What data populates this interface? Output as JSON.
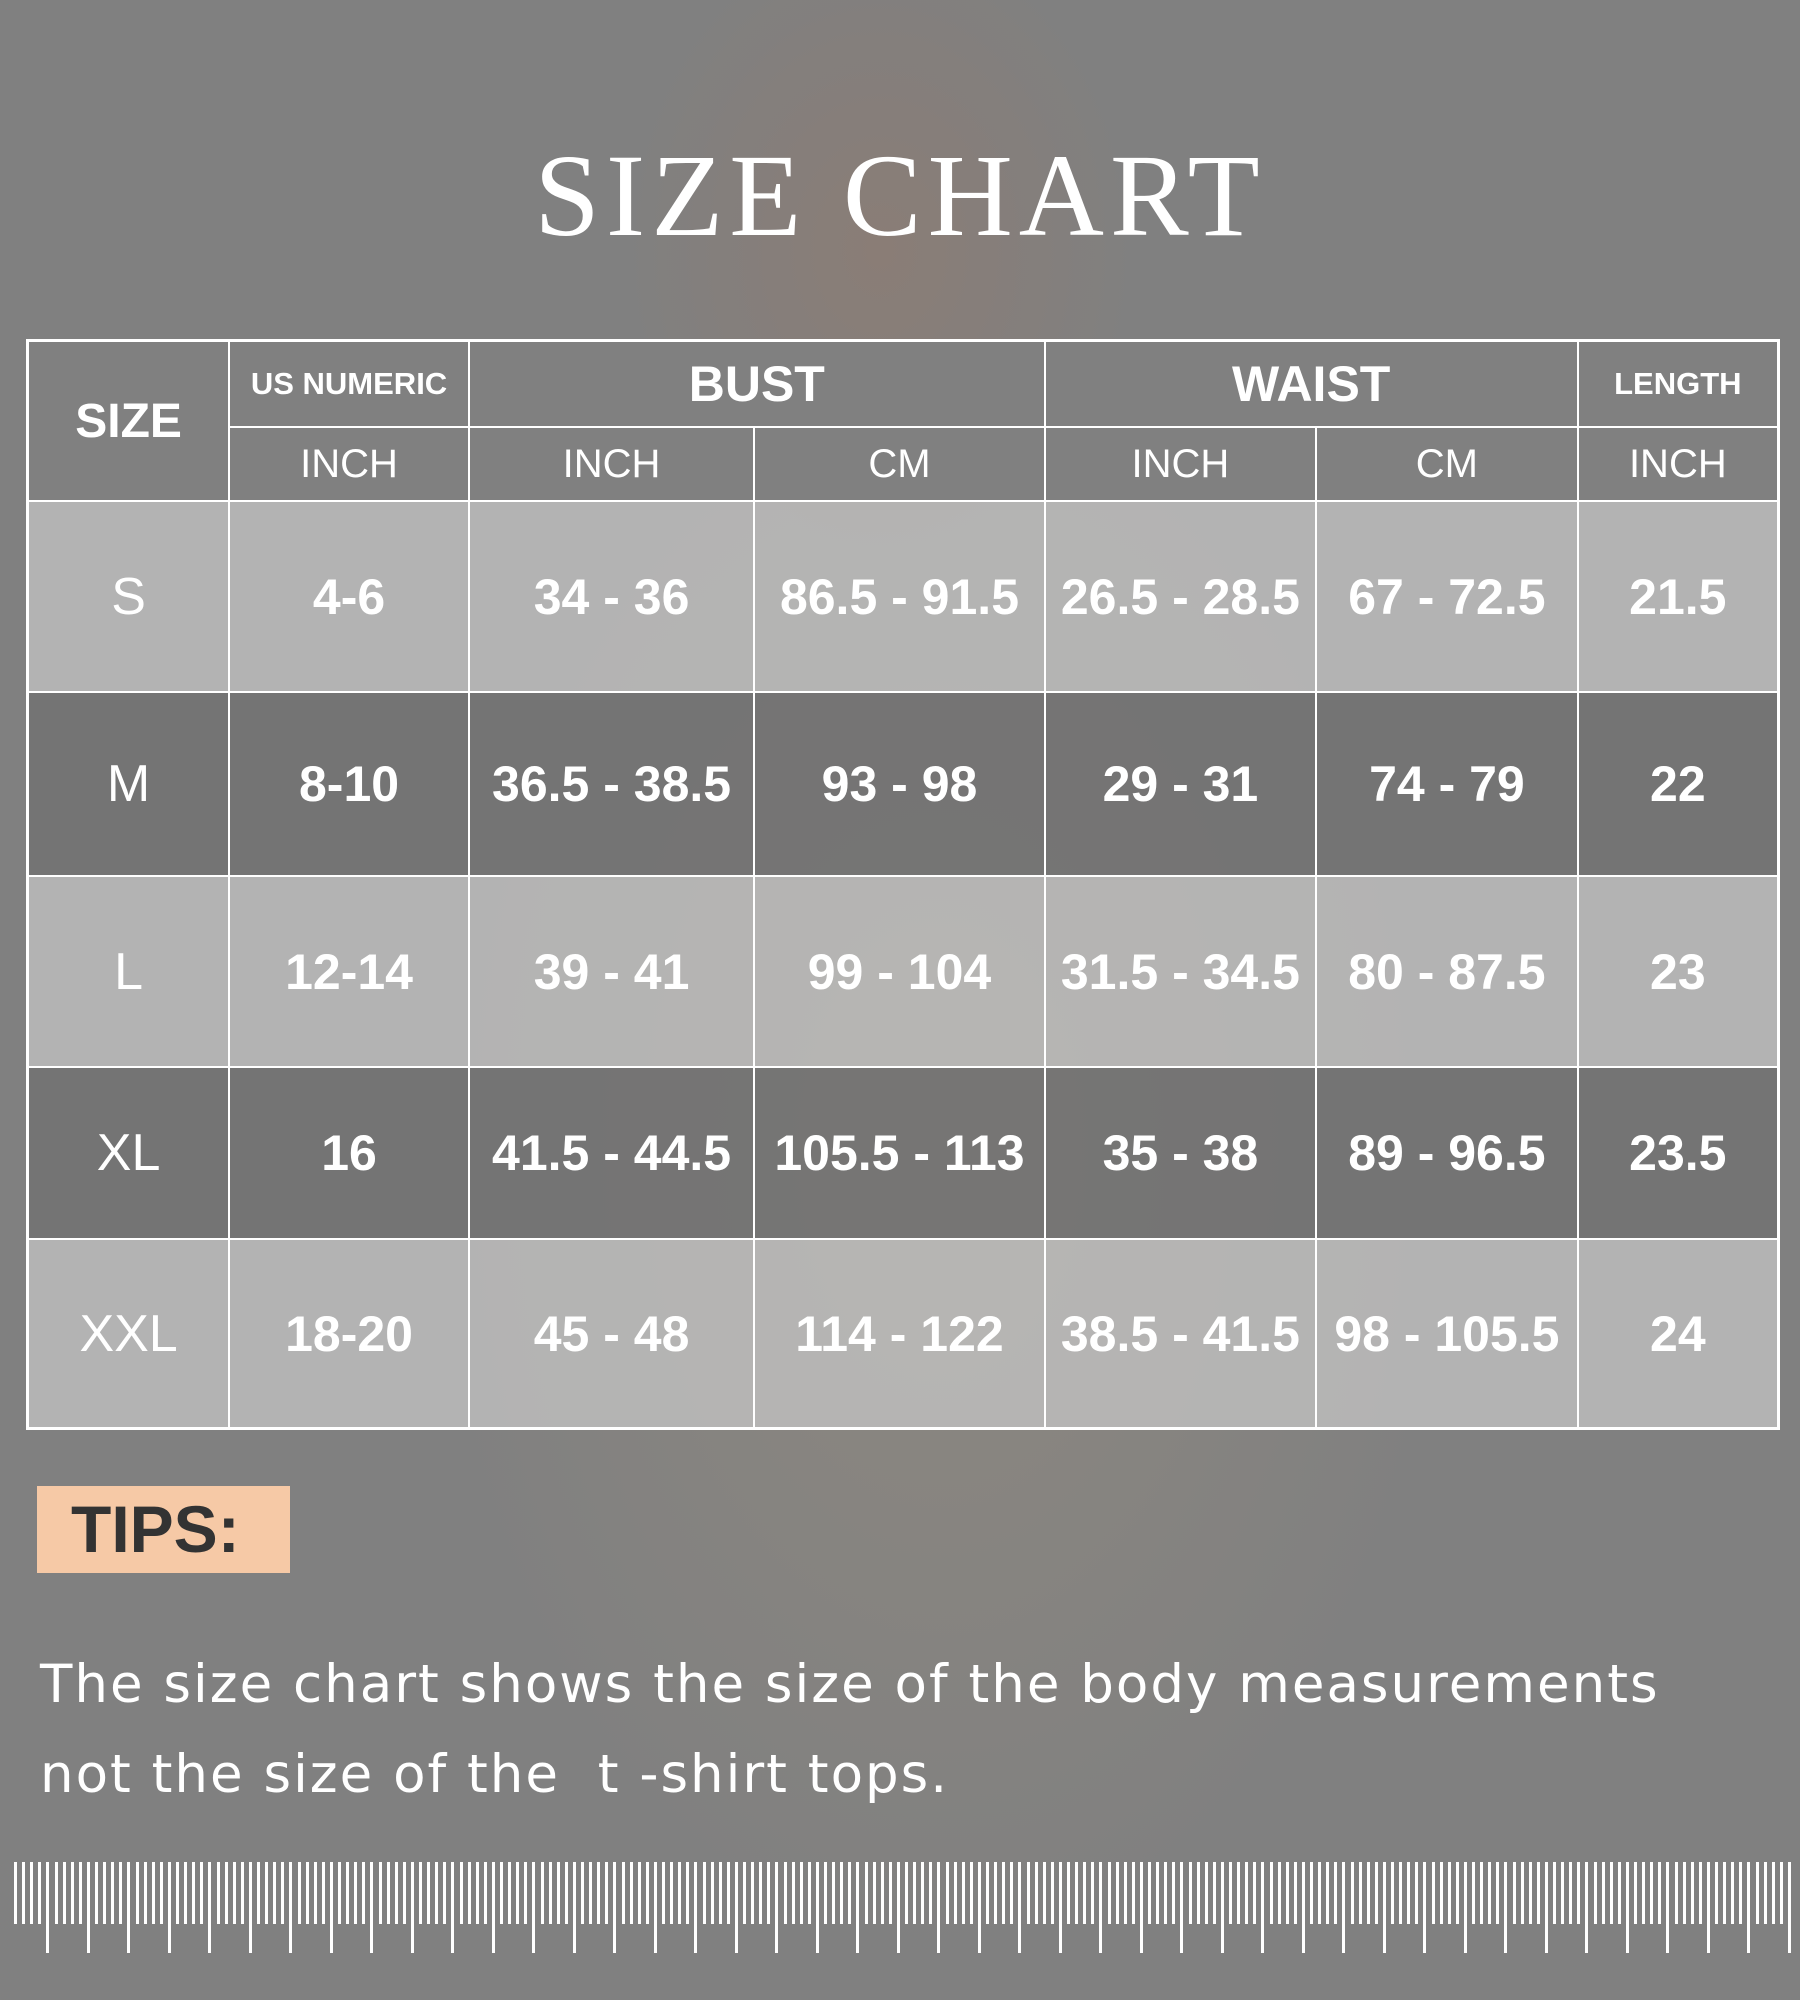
{
  "title": "SIZE CHART",
  "table": {
    "size_header": "SIZE",
    "groups": [
      "US NUMERIC",
      "BUST",
      "WAIST",
      "LENGTH"
    ],
    "units": [
      "INCH",
      "INCH",
      "CM",
      "INCH",
      "CM",
      "INCH"
    ],
    "rows": [
      [
        "S",
        "4-6",
        "34 - 36",
        "86.5 - 91.5",
        "26.5 - 28.5",
        "67 - 72.5",
        "21.5"
      ],
      [
        "M",
        "8-10",
        "36.5 - 38.5",
        "93 - 98",
        "29 - 31",
        "74 - 79",
        "22"
      ],
      [
        "L",
        "12-14",
        "39 - 41",
        "99 - 104",
        "31.5 - 34.5",
        "80 - 87.5",
        "23"
      ],
      [
        "XL",
        "16",
        "41.5 - 44.5",
        "105.5 - 113",
        "35 - 38",
        "89 - 96.5",
        "23.5"
      ],
      [
        "XXL",
        "18-20",
        "45 - 48",
        "114 - 122",
        "38.5 - 41.5",
        "98 - 105.5",
        "24"
      ]
    ]
  },
  "tips": {
    "label": "TIPS:",
    "line1": "The size chart shows the size of the body measurements",
    "line2": "not the size of the  t -shirt tops."
  },
  "colors": {
    "background": "#808080",
    "tips_badge": "#f6c9a6"
  },
  "decor": {
    "ruler": "ruler-ticks"
  }
}
